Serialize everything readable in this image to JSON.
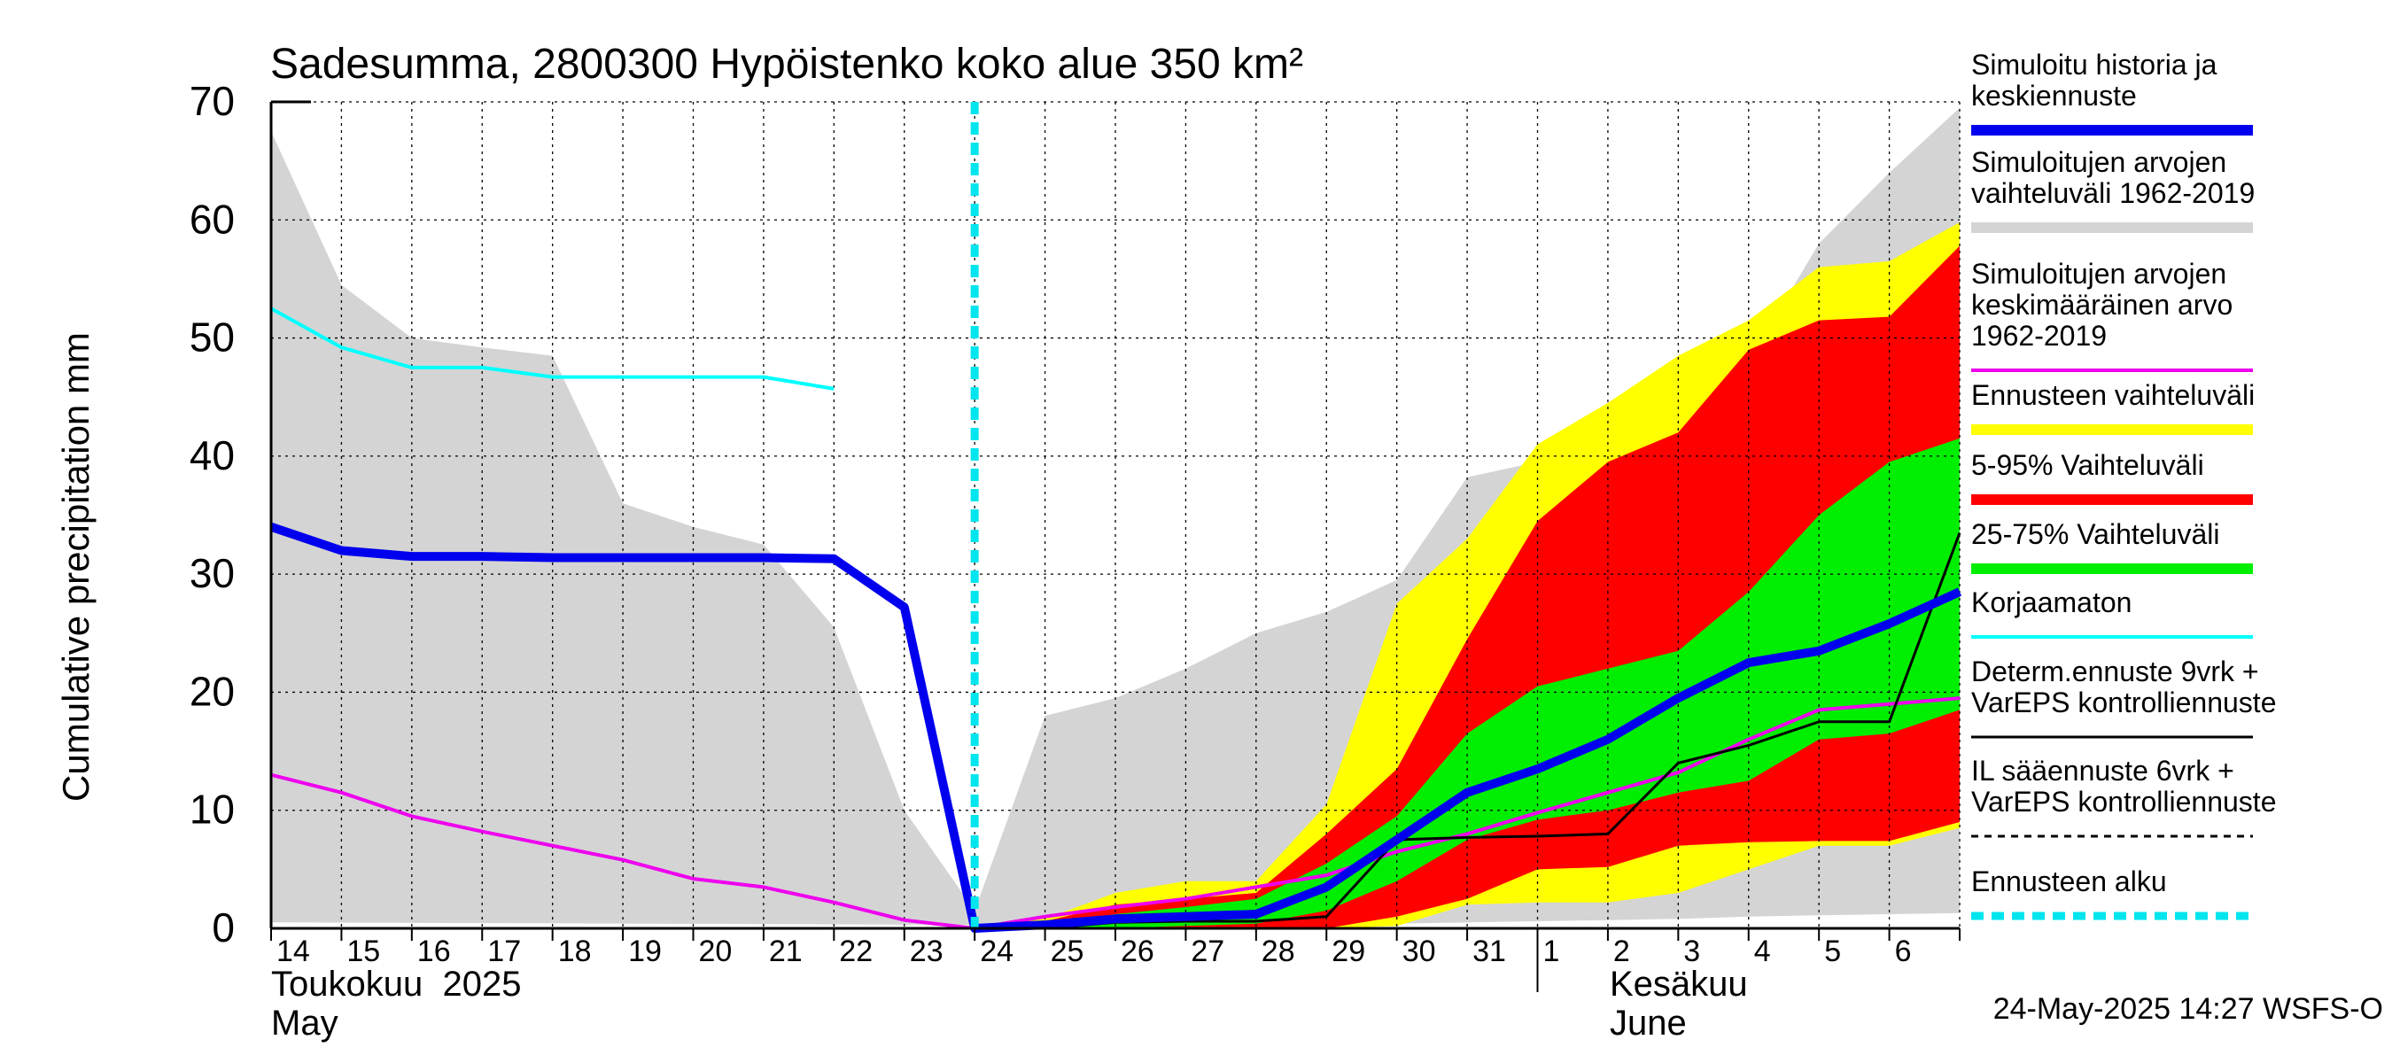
{
  "chart_data": {
    "type": "area",
    "title": "Sadesumma, 2800300 Hypöistenko koko alue 350 km²",
    "ylabel": "Cumulative precipitation   mm",
    "ylim": [
      0,
      70
    ],
    "yticks": [
      "0",
      "10",
      "20",
      "30",
      "40",
      "50",
      "60",
      "70"
    ],
    "x_tick_labels": [
      "14",
      "15",
      "16",
      "17",
      "18",
      "19",
      "20",
      "21",
      "22",
      "23",
      "24",
      "25",
      "26",
      "27",
      "28",
      "29",
      "30",
      "31",
      "1",
      "2",
      "3",
      "4",
      "5",
      "6"
    ],
    "x_range_days": [
      0,
      24
    ],
    "month_labels": {
      "may_fi": "Toukokuu  2025",
      "may_en": "May",
      "june_fi": "Kesäkuu",
      "june_en": "June"
    },
    "forecast_start_day": 10,
    "footer": "24-May-2025 14:27 WSFS-O",
    "legend": [
      {
        "key": "history",
        "label_lines": [
          "Simuloitu historia ja",
          "keskiennuste"
        ],
        "color": "#0000ee",
        "style": "thick"
      },
      {
        "key": "range",
        "label_lines": [
          "Simuloitujen arvojen",
          "vaihteluväli 1962-2019"
        ],
        "color": "#d4d4d4",
        "style": "thick"
      },
      {
        "key": "mean",
        "label_lines": [
          "Simuloitujen arvojen",
          "keskimääräinen arvo",
          "   1962-2019"
        ],
        "color": "#ee00ee",
        "style": "line"
      },
      {
        "key": "ens",
        "label_lines": [
          "Ennusteen vaihteluväli"
        ],
        "color": "#ffff00",
        "style": "thick"
      },
      {
        "key": "p595",
        "label_lines": [
          "5-95% Vaihteluväli"
        ],
        "color": "#ff0000",
        "style": "thick"
      },
      {
        "key": "p2575",
        "label_lines": [
          "25-75% Vaihteluväli"
        ],
        "color": "#00ee00",
        "style": "thick"
      },
      {
        "key": "korj",
        "label_lines": [
          "Korjaamaton"
        ],
        "color": "#00ffff",
        "style": "line"
      },
      {
        "key": "determ",
        "label_lines": [
          "Determ.ennuste 9vrk +",
          "VarEPS kontrolliennuste"
        ],
        "color": "#000000",
        "style": "thin"
      },
      {
        "key": "il",
        "label_lines": [
          "IL sääennuste 6vrk  +",
          "  VarEPS kontrolliennuste"
        ],
        "color": "#000000",
        "style": "dashed"
      },
      {
        "key": "alku",
        "label_lines": [
          "Ennusteen alku"
        ],
        "color": "#00e5ee",
        "style": "dotted"
      }
    ],
    "series": {
      "climate_range_upper": {
        "x": [
          0,
          1,
          2,
          3,
          4,
          5,
          6,
          7,
          8,
          9,
          10,
          11,
          12,
          13,
          14,
          15,
          16,
          17,
          18,
          19,
          20,
          21,
          22,
          23,
          24
        ],
        "y": [
          67.5,
          54.5,
          50,
          49.2,
          48.5,
          36,
          34,
          32.5,
          25.5,
          10,
          1.5,
          18,
          19.5,
          22,
          25,
          26.8,
          29.5,
          38.2,
          39.5,
          43,
          46.5,
          48,
          58,
          64,
          69.5
        ]
      },
      "climate_range_lower": {
        "x": [
          0,
          10,
          11,
          12,
          13,
          14,
          15,
          16,
          17,
          18,
          19,
          20,
          21,
          22,
          23,
          24
        ],
        "y": [
          0.5,
          0.3,
          0.2,
          0.2,
          0.2,
          0.2,
          0.3,
          0.4,
          0.5,
          0.6,
          0.7,
          0.8,
          1.0,
          1.1,
          1.2,
          1.3
        ]
      },
      "ensemble_range_upper": {
        "x": [
          10,
          11,
          12,
          13,
          14,
          15,
          16,
          17,
          18,
          19,
          20,
          21,
          22,
          23,
          24
        ],
        "y": [
          0.2,
          0.8,
          3,
          4,
          4,
          10.5,
          27.5,
          33,
          41,
          44.5,
          48.5,
          51.5,
          56,
          56.5,
          59.8
        ]
      },
      "ensemble_range_lower": {
        "x": [
          10,
          11,
          12,
          13,
          14,
          15,
          16,
          17,
          18,
          19,
          20,
          21,
          22,
          23,
          24
        ],
        "y": [
          0,
          0,
          0,
          0,
          0,
          0,
          0.2,
          2,
          2.2,
          2.2,
          3,
          5,
          7,
          7,
          8.5
        ]
      },
      "p5_95_upper": {
        "x": [
          10,
          11,
          12,
          13,
          14,
          15,
          16,
          17,
          18,
          19,
          20,
          21,
          22,
          23,
          24
        ],
        "y": [
          0.1,
          0.6,
          2,
          2.5,
          3,
          8,
          13.5,
          24.5,
          34.5,
          39.5,
          42,
          49,
          51.5,
          51.8,
          57.8
        ]
      },
      "p5_95_lower": {
        "x": [
          10,
          11,
          12,
          13,
          14,
          15,
          16,
          17,
          18,
          19,
          20,
          21,
          22,
          23,
          24
        ],
        "y": [
          0,
          0,
          0,
          0,
          0,
          0,
          1,
          2.5,
          5,
          5.2,
          7,
          7.3,
          7.4,
          7.4,
          9
        ]
      },
      "p25_75_upper": {
        "x": [
          10,
          11,
          12,
          13,
          14,
          15,
          16,
          17,
          18,
          19,
          20,
          21,
          22,
          23,
          24
        ],
        "y": [
          0.1,
          0.4,
          1.2,
          1.8,
          2.5,
          5.5,
          9.5,
          16.5,
          20.5,
          22,
          23.5,
          28.5,
          35,
          39.5,
          41.5
        ]
      },
      "p25_75_lower": {
        "x": [
          10,
          11,
          12,
          13,
          14,
          15,
          16,
          17,
          18,
          19,
          20,
          21,
          22,
          23,
          24
        ],
        "y": [
          0,
          0,
          0,
          0.2,
          0.4,
          1.5,
          4,
          7.5,
          9.2,
          10,
          11.5,
          12.5,
          16,
          16.5,
          18.5
        ]
      },
      "history_and_forecast": {
        "x": [
          0,
          1,
          2,
          3,
          4,
          5,
          6,
          7,
          8,
          9,
          10,
          11,
          12,
          13,
          14,
          15,
          16,
          17,
          18,
          19,
          20,
          21,
          22,
          23,
          24
        ],
        "y": [
          34,
          32,
          31.5,
          31.5,
          31.4,
          31.4,
          31.4,
          31.4,
          31.3,
          27.2,
          0,
          0.3,
          0.8,
          1,
          1.2,
          3.5,
          7.5,
          11.5,
          13.5,
          16,
          19.5,
          22.5,
          23.5,
          25.8,
          28.5
        ]
      },
      "climate_mean": {
        "x": [
          0,
          1,
          2,
          3,
          4,
          5,
          6,
          7,
          8,
          9,
          10,
          11,
          12,
          13,
          14,
          15,
          16,
          17,
          18,
          19,
          20,
          21,
          22,
          23,
          24
        ],
        "y": [
          13,
          11.5,
          9.5,
          8.2,
          7,
          5.8,
          4.2,
          3.5,
          2.2,
          0.7,
          0,
          1,
          1.8,
          2.5,
          3.5,
          4.5,
          6.5,
          8,
          9.8,
          11.5,
          13.2,
          16,
          18.5,
          19,
          19.5
        ]
      },
      "uncorrected": {
        "x": [
          0,
          1,
          2,
          3,
          4,
          5,
          6,
          7,
          8
        ],
        "y": [
          52.5,
          49.2,
          47.5,
          47.5,
          46.7,
          46.7,
          46.7,
          46.7,
          45.7
        ]
      },
      "deterministic": {
        "x": [
          10,
          11,
          12,
          13,
          14,
          15,
          16,
          17,
          18,
          19,
          20,
          21,
          22,
          23,
          24
        ],
        "y": [
          0,
          0,
          0.5,
          0.6,
          0.6,
          1,
          7.5,
          7.7,
          7.8,
          8,
          14,
          15.5,
          17.5,
          17.5,
          33.5
        ]
      }
    }
  }
}
